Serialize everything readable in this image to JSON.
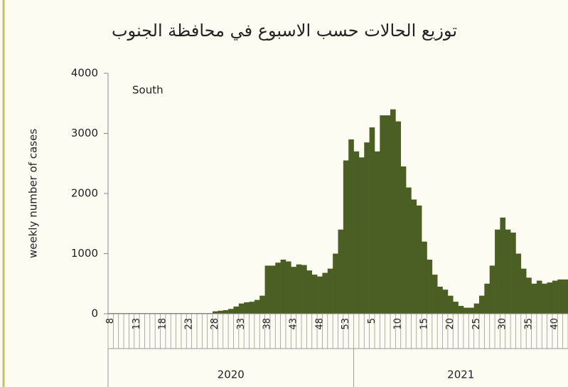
{
  "chart_data": {
    "type": "bar",
    "title": "توزيع الحالات حسب الاسبوع في محافظة الجنوب",
    "annotation": "South",
    "y_label": "weekly number of cases",
    "years": [
      "2020",
      "2021"
    ],
    "categories": [
      "8",
      null,
      null,
      null,
      null,
      "13",
      null,
      null,
      null,
      null,
      "18",
      null,
      null,
      null,
      null,
      "23",
      null,
      null,
      null,
      null,
      "28",
      null,
      null,
      null,
      null,
      "33",
      null,
      null,
      null,
      null,
      "38",
      null,
      null,
      null,
      null,
      "43",
      null,
      null,
      null,
      null,
      "48",
      null,
      null,
      null,
      null,
      "53",
      null,
      null,
      null,
      null,
      "5",
      null,
      null,
      null,
      null,
      "10",
      null,
      null,
      null,
      null,
      "15",
      null,
      null,
      null,
      null,
      "20",
      null,
      null,
      null,
      null,
      "25",
      null,
      null,
      null,
      null,
      "30",
      null,
      null,
      null,
      null,
      "35",
      null,
      null,
      null,
      null,
      "40",
      null,
      null
    ],
    "values": [
      10,
      10,
      10,
      10,
      10,
      10,
      10,
      10,
      10,
      10,
      10,
      10,
      10,
      10,
      10,
      10,
      10,
      10,
      10,
      10,
      40,
      50,
      60,
      80,
      120,
      170,
      190,
      200,
      230,
      300,
      800,
      800,
      850,
      900,
      870,
      780,
      820,
      810,
      720,
      650,
      620,
      680,
      750,
      1000,
      1400,
      2550,
      2900,
      2700,
      2600,
      2850,
      3100,
      2700,
      3300,
      3300,
      3400,
      3200,
      2450,
      2100,
      1900,
      1800,
      1200,
      900,
      650,
      450,
      400,
      300,
      200,
      130,
      100,
      100,
      170,
      300,
      500,
      800,
      1400,
      1600,
      1400,
      1350,
      1000,
      750,
      600,
      500,
      550,
      500,
      520,
      550,
      570,
      570
    ],
    "color": "#4b5e23",
    "ylim": [
      0,
      4000
    ],
    "yticks": [
      0,
      1000,
      2000,
      3000,
      4000
    ]
  }
}
